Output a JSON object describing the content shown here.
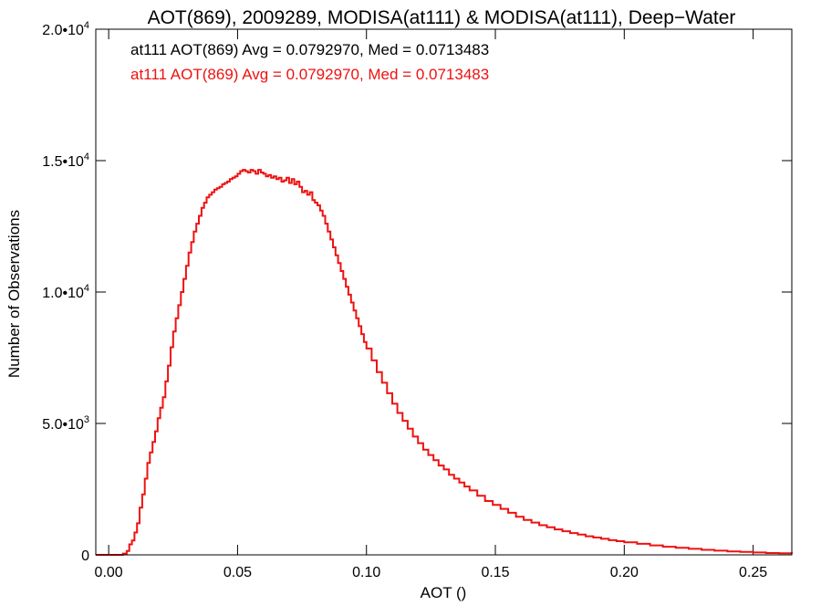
{
  "chart_data": {
    "type": "line",
    "title": "AOT(869), 2009289, MODISA(at111) & MODISA(at111), Deep−Water",
    "xlabel": "AOT ()",
    "ylabel": "Number of Observations",
    "xlim": [
      -0.005,
      0.265
    ],
    "ylim": [
      0,
      20000
    ],
    "grid": false,
    "x_ticks": [
      {
        "value": 0.0,
        "label": "0.00"
      },
      {
        "value": 0.05,
        "label": "0.05"
      },
      {
        "value": 0.1,
        "label": "0.10"
      },
      {
        "value": 0.15,
        "label": "0.15"
      },
      {
        "value": 0.2,
        "label": "0.20"
      },
      {
        "value": 0.25,
        "label": "0.25"
      }
    ],
    "y_ticks": [
      {
        "value": 0,
        "mantissa": "0",
        "exponent": ""
      },
      {
        "value": 5000,
        "mantissa": "5.0•10",
        "exponent": "3"
      },
      {
        "value": 10000,
        "mantissa": "1.0•10",
        "exponent": "4"
      },
      {
        "value": 15000,
        "mantissa": "1.5•10",
        "exponent": "4"
      },
      {
        "value": 20000,
        "mantissa": "2.0•10",
        "exponent": "4"
      }
    ],
    "annotations": [
      {
        "text": "at111 AOT(869) Avg = 0.0792970, Med = 0.0713483",
        "color": "#000000"
      },
      {
        "text": "at111 AOT(869) Avg = 0.0792970, Med = 0.0713483",
        "color": "#ee1111"
      }
    ],
    "series": [
      {
        "color": "#ee1111",
        "x": [
          -0.005,
          0.0055,
          0.007,
          0.008,
          0.009,
          0.01,
          0.011,
          0.012,
          0.013,
          0.014,
          0.015,
          0.016,
          0.017,
          0.018,
          0.019,
          0.02,
          0.021,
          0.022,
          0.023,
          0.024,
          0.025,
          0.026,
          0.027,
          0.028,
          0.029,
          0.03,
          0.031,
          0.032,
          0.033,
          0.034,
          0.035,
          0.036,
          0.037,
          0.038,
          0.039,
          0.04,
          0.041,
          0.042,
          0.043,
          0.044,
          0.045,
          0.046,
          0.047,
          0.048,
          0.049,
          0.05,
          0.051,
          0.052,
          0.053,
          0.054,
          0.055,
          0.056,
          0.057,
          0.058,
          0.059,
          0.06,
          0.061,
          0.062,
          0.063,
          0.064,
          0.065,
          0.066,
          0.067,
          0.068,
          0.069,
          0.07,
          0.071,
          0.072,
          0.073,
          0.074,
          0.075,
          0.076,
          0.077,
          0.078,
          0.079,
          0.08,
          0.081,
          0.082,
          0.083,
          0.084,
          0.085,
          0.086,
          0.087,
          0.088,
          0.089,
          0.09,
          0.091,
          0.092,
          0.093,
          0.094,
          0.095,
          0.096,
          0.097,
          0.098,
          0.099,
          0.1,
          0.102,
          0.104,
          0.106,
          0.108,
          0.11,
          0.112,
          0.114,
          0.116,
          0.118,
          0.12,
          0.122,
          0.124,
          0.126,
          0.128,
          0.13,
          0.132,
          0.134,
          0.136,
          0.138,
          0.14,
          0.143,
          0.146,
          0.149,
          0.152,
          0.155,
          0.158,
          0.161,
          0.164,
          0.167,
          0.17,
          0.173,
          0.176,
          0.179,
          0.182,
          0.185,
          0.188,
          0.191,
          0.194,
          0.197,
          0.2,
          0.205,
          0.21,
          0.215,
          0.22,
          0.225,
          0.23,
          0.235,
          0.24,
          0.245,
          0.25,
          0.255,
          0.26,
          0.265
        ],
        "y": [
          0,
          50,
          150,
          400,
          550,
          850,
          1200,
          1800,
          2300,
          2900,
          3500,
          3900,
          4300,
          4700,
          5200,
          5600,
          6000,
          6600,
          7200,
          7900,
          8500,
          9000,
          9500,
          10000,
          10500,
          11000,
          11500,
          11900,
          12300,
          12600,
          12900,
          13200,
          13400,
          13600,
          13700,
          13800,
          13900,
          13950,
          14000,
          14100,
          14150,
          14200,
          14300,
          14350,
          14400,
          14500,
          14600,
          14650,
          14600,
          14550,
          14650,
          14600,
          14500,
          14650,
          14550,
          14500,
          14400,
          14450,
          14350,
          14400,
          14300,
          14350,
          14200,
          14250,
          14350,
          14150,
          14300,
          14100,
          14200,
          14000,
          13800,
          13850,
          13700,
          13800,
          13500,
          13400,
          13300,
          13100,
          12900,
          12600,
          12300,
          12000,
          11700,
          11400,
          11100,
          10800,
          10500,
          10200,
          9900,
          9600,
          9300,
          9000,
          8700,
          8400,
          8100,
          7850,
          7400,
          6950,
          6550,
          6150,
          5750,
          5400,
          5100,
          4800,
          4500,
          4250,
          4000,
          3800,
          3600,
          3400,
          3250,
          3050,
          2900,
          2750,
          2600,
          2450,
          2250,
          2050,
          1900,
          1750,
          1600,
          1450,
          1330,
          1230,
          1130,
          1050,
          970,
          900,
          830,
          770,
          710,
          660,
          610,
          560,
          520,
          480,
          420,
          360,
          310,
          270,
          230,
          190,
          160,
          130,
          110,
          90,
          70,
          60,
          50
        ]
      }
    ]
  }
}
